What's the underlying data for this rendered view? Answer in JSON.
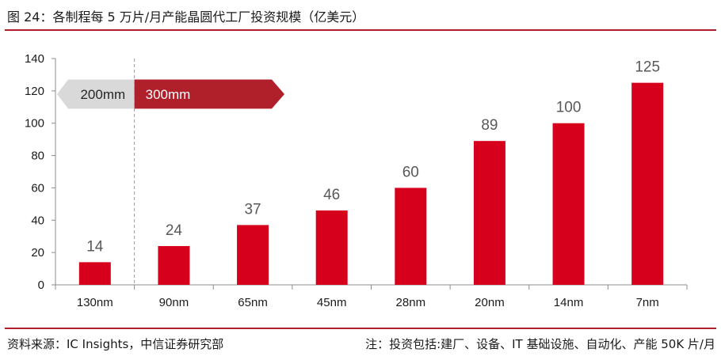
{
  "title": "图 24：各制程每 5 万片/月产能晶圆代工厂投资规模（亿美元）",
  "source": "资料来源：IC Insights，中信证券研究部",
  "note": "注：投资包括:建厂、设备、IT 基础设施、自动化、产能 50K 片/月",
  "colors": {
    "bar": "#d6001c",
    "accent": "#b0202a",
    "arrow_gray": "#d9d9d9",
    "label": "#595959"
  },
  "chart_data": {
    "type": "bar",
    "categories": [
      "130nm",
      "90nm",
      "65nm",
      "45nm",
      "28nm",
      "20nm",
      "14nm",
      "7nm"
    ],
    "values": [
      14,
      24,
      37,
      46,
      60,
      89,
      100,
      125
    ],
    "data_labels": [
      "14",
      "24",
      "37",
      "46",
      "60",
      "89",
      "100",
      "125"
    ],
    "ylim": [
      0,
      140
    ],
    "yticks": [
      0,
      20,
      40,
      60,
      80,
      100,
      120,
      140
    ],
    "grid": false,
    "annotations": {
      "left_arrow": "200mm",
      "right_arrow": "300mm"
    }
  }
}
